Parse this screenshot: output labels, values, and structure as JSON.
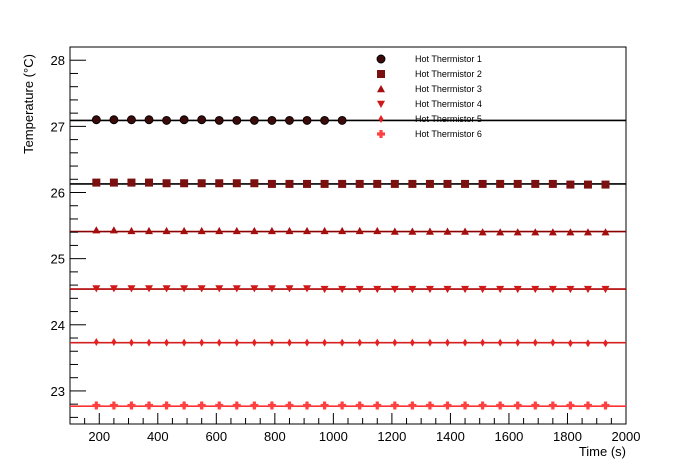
{
  "chart_data": {
    "type": "scatter",
    "xlabel": "Time (s)",
    "ylabel": "Temperature (°C)",
    "xlim": [
      100,
      2000
    ],
    "ylim": [
      22.5,
      28.2
    ],
    "x_ticks": [
      "200",
      "400",
      "600",
      "800",
      "1000",
      "1200",
      "1400",
      "1600",
      "1800",
      "2000"
    ],
    "y_ticks": [
      "23",
      "24",
      "25",
      "26",
      "27",
      "28"
    ],
    "legend_position": "top-right",
    "series": [
      {
        "name": "Hot Thermistor 1",
        "marker": "circle",
        "color": "#3d0a0a",
        "fit_color": "#000000",
        "fit": 27.09,
        "x": [
          190,
          250,
          310,
          370,
          430,
          490,
          550,
          610,
          670,
          730,
          790,
          850,
          910,
          970,
          1030
        ],
        "y": [
          27.1,
          27.1,
          27.1,
          27.1,
          27.09,
          27.1,
          27.1,
          27.09,
          27.09,
          27.09,
          27.09,
          27.09,
          27.09,
          27.09,
          27.09
        ]
      },
      {
        "name": "Hot Thermistor 2",
        "marker": "square",
        "color": "#7a1010",
        "fit_color": "#000000",
        "fit": 26.13,
        "x": [
          190,
          250,
          310,
          370,
          430,
          490,
          550,
          610,
          670,
          730,
          790,
          850,
          910,
          970,
          1030,
          1090,
          1150,
          1210,
          1270,
          1330,
          1390,
          1450,
          1510,
          1570,
          1630,
          1690,
          1750,
          1810,
          1870,
          1930
        ],
        "y": [
          26.15,
          26.15,
          26.15,
          26.15,
          26.14,
          26.14,
          26.14,
          26.14,
          26.14,
          26.14,
          26.13,
          26.13,
          26.13,
          26.13,
          26.13,
          26.13,
          26.13,
          26.13,
          26.13,
          26.13,
          26.13,
          26.13,
          26.13,
          26.13,
          26.13,
          26.13,
          26.13,
          26.12,
          26.12,
          26.12
        ]
      },
      {
        "name": "Hot Thermistor 3",
        "marker": "triangle-up",
        "color": "#a50e0e",
        "fit_color": "#8b0000",
        "fit": 25.41,
        "x": [
          190,
          250,
          310,
          370,
          430,
          490,
          550,
          610,
          670,
          730,
          790,
          850,
          910,
          970,
          1030,
          1090,
          1150,
          1210,
          1270,
          1330,
          1390,
          1450,
          1510,
          1570,
          1630,
          1690,
          1750,
          1810,
          1870,
          1930
        ],
        "y": [
          25.43,
          25.43,
          25.42,
          25.42,
          25.42,
          25.42,
          25.42,
          25.42,
          25.42,
          25.42,
          25.42,
          25.42,
          25.42,
          25.42,
          25.42,
          25.42,
          25.42,
          25.41,
          25.41,
          25.41,
          25.41,
          25.41,
          25.4,
          25.4,
          25.4,
          25.4,
          25.4,
          25.4,
          25.4,
          25.4
        ]
      },
      {
        "name": "Hot Thermistor 4",
        "marker": "triangle-down",
        "color": "#d01818",
        "fit_color": "#b00000",
        "fit": 24.54,
        "x": [
          190,
          250,
          310,
          370,
          430,
          490,
          550,
          610,
          670,
          730,
          790,
          850,
          910,
          970,
          1030,
          1090,
          1150,
          1210,
          1270,
          1330,
          1390,
          1450,
          1510,
          1570,
          1630,
          1690,
          1750,
          1810,
          1870,
          1930
        ],
        "y": [
          24.55,
          24.55,
          24.55,
          24.55,
          24.55,
          24.55,
          24.55,
          24.55,
          24.55,
          24.55,
          24.55,
          24.55,
          24.55,
          24.54,
          24.54,
          24.54,
          24.54,
          24.54,
          24.54,
          24.54,
          24.54,
          24.54,
          24.54,
          24.54,
          24.54,
          24.54,
          24.54,
          24.54,
          24.54,
          24.54
        ]
      },
      {
        "name": "Hot Thermistor 5",
        "marker": "diamond",
        "color": "#e52020",
        "fit_color": "#d42020",
        "fit": 23.73,
        "x": [
          190,
          250,
          310,
          370,
          430,
          490,
          550,
          610,
          670,
          730,
          790,
          850,
          910,
          970,
          1030,
          1090,
          1150,
          1210,
          1270,
          1330,
          1390,
          1450,
          1510,
          1570,
          1630,
          1690,
          1750,
          1810,
          1870,
          1930
        ],
        "y": [
          23.74,
          23.74,
          23.73,
          23.73,
          23.73,
          23.73,
          23.73,
          23.73,
          23.73,
          23.73,
          23.73,
          23.73,
          23.73,
          23.73,
          23.73,
          23.73,
          23.73,
          23.73,
          23.73,
          23.73,
          23.73,
          23.73,
          23.73,
          23.73,
          23.73,
          23.73,
          23.73,
          23.72,
          23.72,
          23.72
        ]
      },
      {
        "name": "Hot Thermistor 6",
        "marker": "cross",
        "color": "#ff4040",
        "fit_color": "#ff3030",
        "fit": 22.77,
        "x": [
          190,
          250,
          310,
          370,
          430,
          490,
          550,
          610,
          670,
          730,
          790,
          850,
          910,
          970,
          1030,
          1090,
          1150,
          1210,
          1270,
          1330,
          1390,
          1450,
          1510,
          1570,
          1630,
          1690,
          1750,
          1810,
          1870,
          1930
        ],
        "y": [
          22.78,
          22.78,
          22.78,
          22.78,
          22.78,
          22.78,
          22.78,
          22.78,
          22.78,
          22.78,
          22.78,
          22.78,
          22.78,
          22.78,
          22.78,
          22.78,
          22.78,
          22.78,
          22.78,
          22.78,
          22.78,
          22.78,
          22.78,
          22.78,
          22.78,
          22.78,
          22.78,
          22.78,
          22.78,
          22.78
        ]
      }
    ]
  }
}
